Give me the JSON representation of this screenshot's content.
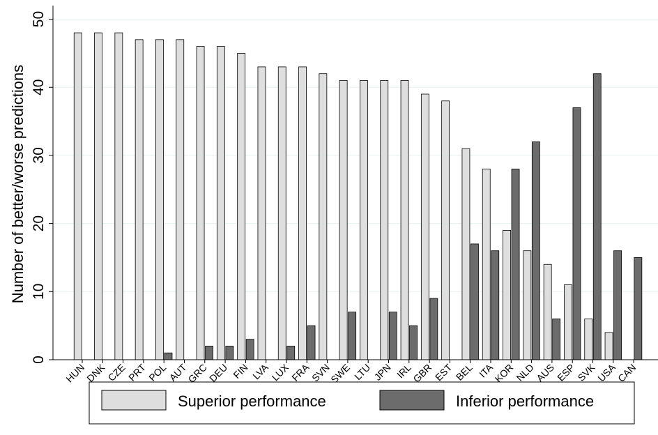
{
  "chart_data": {
    "type": "bar",
    "title": "",
    "xlabel": "",
    "ylabel": "Number of better/worse predictions",
    "ylim": [
      0,
      52
    ],
    "yticks": [
      0,
      10,
      20,
      30,
      40,
      50
    ],
    "grid": true,
    "legend_position": "bottom",
    "categories": [
      "HUN",
      "DNK",
      "CZE",
      "PRT",
      "POL",
      "AUT",
      "GRC",
      "DEU",
      "FIN",
      "LVA",
      "LUX",
      "FRA",
      "SVN",
      "SWE",
      "LTU",
      "JPN",
      "IRL",
      "GBR",
      "EST",
      "BEL",
      "ITA",
      "KOR",
      "NLD",
      "AUS",
      "ESP",
      "SVK",
      "USA",
      "CAN"
    ],
    "series": [
      {
        "name": "Superior performance",
        "color": "#dedede",
        "values": [
          48,
          48,
          48,
          47,
          47,
          47,
          46,
          46,
          45,
          43,
          43,
          43,
          42,
          41,
          41,
          41,
          41,
          39,
          38,
          31,
          28,
          19,
          16,
          14,
          11,
          6,
          4,
          0
        ]
      },
      {
        "name": "Inferior performance",
        "color": "#6c6c6c",
        "values": [
          0,
          0,
          0,
          0,
          1,
          0,
          2,
          2,
          3,
          0,
          2,
          5,
          0,
          7,
          0,
          7,
          5,
          9,
          0,
          17,
          16,
          28,
          32,
          6,
          37,
          42,
          16,
          15
        ]
      }
    ]
  }
}
